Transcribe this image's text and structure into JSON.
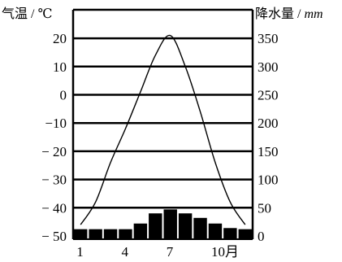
{
  "chart_data": {
    "type": "bar",
    "title": "",
    "left_axis_label": "气温 / ℃",
    "right_axis_label_prefix": "降水量 / ",
    "right_axis_label_unit": "mm",
    "left_axis": {
      "range": [
        -50,
        22
      ],
      "ticks": [
        "20",
        "10",
        "0",
        "−10",
        "− 20",
        "− 30",
        "− 40",
        "− 50"
      ],
      "tick_values": [
        20,
        10,
        0,
        -10,
        -20,
        -30,
        -40,
        -50
      ]
    },
    "right_axis": {
      "range": [
        0,
        360
      ],
      "ticks": [
        "350",
        "300",
        "250",
        "200",
        "150",
        "100",
        "50",
        "0"
      ],
      "tick_values": [
        350,
        300,
        250,
        200,
        150,
        100,
        50,
        0
      ]
    },
    "x_axis": {
      "tick_labels": [
        "1",
        "4",
        "7",
        "10月"
      ],
      "tick_months": [
        1,
        4,
        7,
        10
      ]
    },
    "grid": "horizontal lines at left-axis ticks",
    "months": [
      1,
      2,
      3,
      4,
      5,
      6,
      7,
      8,
      9,
      10,
      11,
      12
    ],
    "series": [
      {
        "kind": "line",
        "axis": "left",
        "values": [
          -46,
          -38,
          -24,
          -12,
          1,
          14,
          21,
          10,
          -6,
          -24,
          -38,
          -46
        ]
      },
      {
        "kind": "bar",
        "axis": "right",
        "values": [
          12,
          12,
          12,
          12,
          22,
          40,
          47,
          40,
          32,
          22,
          14,
          12
        ]
      }
    ]
  }
}
